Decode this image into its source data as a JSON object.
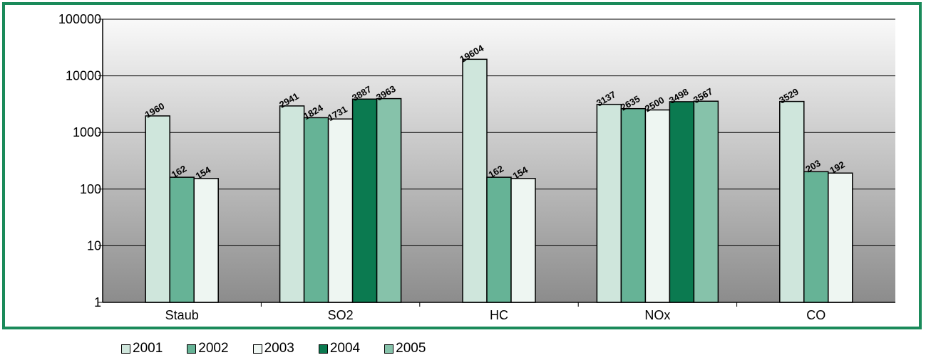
{
  "chart_data": {
    "type": "bar",
    "yscale": "log",
    "ylim": [
      1,
      100000
    ],
    "yticks": [
      "1",
      "10",
      "100",
      "1000",
      "10000",
      "100000"
    ],
    "grid": true,
    "legend_position": "bottom",
    "categories": [
      "Staub",
      "SO2",
      "HC",
      "NOx",
      "CO"
    ],
    "series": [
      {
        "name": "2001",
        "color": "#cfe6dc",
        "values": [
          1960,
          2941,
          19604,
          3137,
          3529
        ]
      },
      {
        "name": "2002",
        "color": "#66b396",
        "values": [
          162,
          1824,
          162,
          2635,
          203
        ]
      },
      {
        "name": "2003",
        "color": "#eef6f2",
        "values": [
          154,
          1731,
          154,
          2500,
          192
        ]
      },
      {
        "name": "2004",
        "color": "#0b7a50",
        "values": [
          null,
          3887,
          null,
          3498,
          null
        ]
      },
      {
        "name": "2005",
        "color": "#86c2aa",
        "values": [
          null,
          3963,
          null,
          3567,
          null
        ]
      }
    ]
  }
}
